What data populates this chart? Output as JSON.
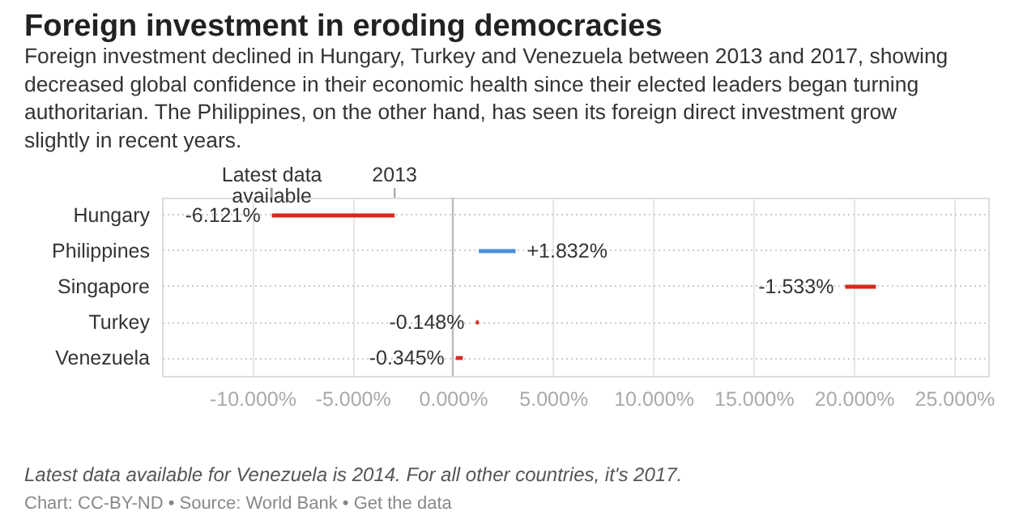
{
  "chart_data": {
    "type": "bar",
    "orientation": "horizontal",
    "title": "Foreign investment in eroding democracies",
    "subtitle": "Foreign investment declined in Hungary, Turkey and Venezuela between 2013 and 2017, showing decreased global confidence in their economic health since their elected leaders began turning authoritarian. The Philippines, on the other hand, has seen its foreign direct investment grow slightly in recent years.",
    "categories": [
      "Hungary",
      "Philippines",
      "Singapore",
      "Turkey",
      "Venezuela"
    ],
    "values": [
      -6.121,
      1.832,
      -1.533,
      -0.148,
      -0.345
    ],
    "base": [
      -2.9,
      1.3,
      21.1,
      1.3,
      0.5
    ],
    "colors": [
      "#d52a1f",
      "#4a90d9",
      "#d52a1f",
      "#d52a1f",
      "#d52a1f"
    ],
    "value_labels": [
      "-6.121%",
      "+1.832%",
      "-1.533%",
      "-0.148%",
      "-0.345%"
    ],
    "xlim": [
      -14.5,
      26.7
    ],
    "xticks": [
      {
        "value": -10,
        "label": "-10.000%"
      },
      {
        "value": -5,
        "label": "-5.000%"
      },
      {
        "value": 0,
        "label": "0.000%"
      },
      {
        "value": 5,
        "label": "5.000%"
      },
      {
        "value": 10,
        "label": "10.000%"
      },
      {
        "value": 15,
        "label": "15.000%"
      },
      {
        "value": 20,
        "label": "20.000%"
      },
      {
        "value": 25,
        "label": "25.000%"
      }
    ],
    "ref_lines": [
      {
        "axis": "x",
        "value": 0,
        "color": "#bbbbbb"
      }
    ],
    "grid": true,
    "annotations": [
      {
        "text": "Latest data available",
        "x": -9.021,
        "y": "Hungary"
      },
      {
        "text": "2013",
        "x": -2.9,
        "y": "Hungary"
      },
      "Latest data available for Venezuela is 2014. For all other countries, it's 2017.",
      "Chart: CC-BY-ND • Source: World Bank • Get the data"
    ]
  }
}
